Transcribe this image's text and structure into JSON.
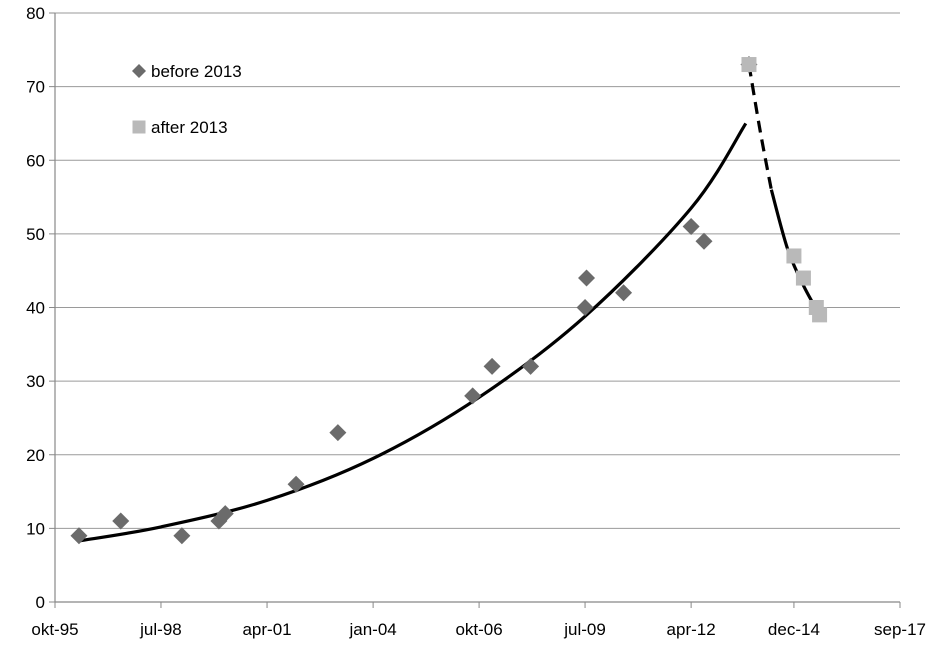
{
  "chart_data": {
    "type": "scatter",
    "title": "",
    "xlabel": "",
    "ylabel": "",
    "x_axis": {
      "type": "date",
      "range": [
        "1995-10-01",
        "2017-09-01"
      ],
      "tick_labels": [
        "okt-95",
        "jul-98",
        "apr-01",
        "jan-04",
        "okt-06",
        "jul-09",
        "apr-12",
        "dec-14",
        "sep-17"
      ],
      "tick_dates": [
        "1995-10-01",
        "1998-07-01",
        "2001-04-01",
        "2004-01-01",
        "2006-10-01",
        "2009-07-01",
        "2012-04-01",
        "2014-12-01",
        "2017-09-01"
      ]
    },
    "y_axis": {
      "range": [
        0,
        80
      ],
      "ticks": [
        0,
        10,
        20,
        30,
        40,
        50,
        60,
        70,
        80
      ]
    },
    "grid": {
      "horizontal": true,
      "vertical": false
    },
    "legend_position": "top-left",
    "series": [
      {
        "name": "before 2013",
        "marker": "diamond",
        "color": "#6b6b6b",
        "points": [
          {
            "x": "1996-05-15",
            "y": 9
          },
          {
            "x": "1997-06-15",
            "y": 11
          },
          {
            "x": "1999-01-15",
            "y": 9
          },
          {
            "x": "2000-01-01",
            "y": 11
          },
          {
            "x": "2000-03-01",
            "y": 12
          },
          {
            "x": "2002-01-01",
            "y": 16
          },
          {
            "x": "2003-02-01",
            "y": 23
          },
          {
            "x": "2006-08-01",
            "y": 28
          },
          {
            "x": "2007-02-01",
            "y": 32
          },
          {
            "x": "2008-02-01",
            "y": 32
          },
          {
            "x": "2009-07-01",
            "y": 40
          },
          {
            "x": "2009-07-15",
            "y": 44
          },
          {
            "x": "2010-07-01",
            "y": 42
          },
          {
            "x": "2012-04-01",
            "y": 51
          },
          {
            "x": "2012-08-01",
            "y": 49
          },
          {
            "x": "2013-10-01",
            "y": 73
          }
        ]
      },
      {
        "name": "after 2013",
        "marker": "square",
        "color": "#b9b9b9",
        "points": [
          {
            "x": "2013-10-01",
            "y": 73
          },
          {
            "x": "2014-12-01",
            "y": 47
          },
          {
            "x": "2015-03-01",
            "y": 44
          },
          {
            "x": "2015-07-01",
            "y": 40
          },
          {
            "x": "2015-08-01",
            "y": 39
          }
        ]
      }
    ],
    "trend_lines": [
      {
        "style": "solid",
        "color": "#000000",
        "points": [
          {
            "x": "1996-05-15",
            "y": 8.3
          },
          {
            "x": "1998-07-01",
            "y": 10.2
          },
          {
            "x": "2001-04-01",
            "y": 13.8
          },
          {
            "x": "2004-01-01",
            "y": 19.5
          },
          {
            "x": "2006-10-01",
            "y": 27.8
          },
          {
            "x": "2009-07-01",
            "y": 38.8
          },
          {
            "x": "2012-04-01",
            "y": 53.5
          },
          {
            "x": "2013-09-01",
            "y": 65
          }
        ]
      },
      {
        "style": "dashed",
        "color": "#000000",
        "points": [
          {
            "x": "2013-10-01",
            "y": 73
          },
          {
            "x": "2014-01-15",
            "y": 64
          },
          {
            "x": "2014-05-01",
            "y": 56
          }
        ]
      },
      {
        "style": "solid",
        "color": "#000000",
        "points": [
          {
            "x": "2014-05-01",
            "y": 56
          },
          {
            "x": "2014-10-01",
            "y": 48
          },
          {
            "x": "2015-03-01",
            "y": 43
          },
          {
            "x": "2015-08-01",
            "y": 39
          }
        ]
      }
    ]
  }
}
